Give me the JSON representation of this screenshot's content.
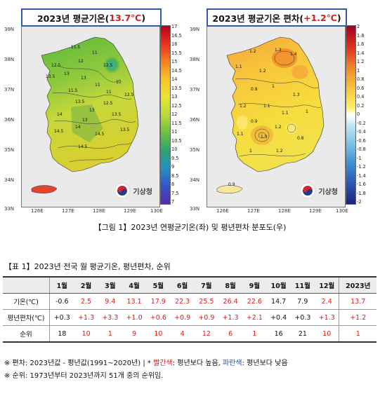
{
  "maps": [
    {
      "title_prefix": "2023년 평균기온(",
      "title_value": "13.7℃",
      "title_suffix": ")",
      "colorbar_ticks": [
        "17",
        "16.5",
        "16",
        "15.5",
        "15",
        "14.5",
        "14",
        "13.5",
        "13",
        "12.5",
        "12",
        "11.5",
        "11",
        "10.5",
        "10",
        "9.5",
        "9",
        "8.5",
        "8",
        "7.5",
        "7"
      ],
      "contour_labels": [
        "11.5",
        "11",
        "12.5",
        "12",
        "13.5",
        "13",
        "13",
        "12.5",
        "11",
        "10",
        "11",
        "12.5",
        "13.5",
        "13",
        "14",
        "13.5",
        "14.5",
        "14",
        "14.5",
        "13.5",
        "13",
        "12.5",
        "11.5",
        "14.5"
      ],
      "logo_text": "기상청"
    },
    {
      "title_prefix": "2023년 평균기온 편차(",
      "title_value": "+1.2℃",
      "title_suffix": ")",
      "colorbar_ticks": [
        "2",
        "1.8",
        "1.6",
        "1.4",
        "1.2",
        "1",
        "0.8",
        "0.6",
        "0.4",
        "0.2",
        "0",
        "-0.2",
        "-0.4",
        "-0.6",
        "-0.8",
        "-1",
        "-1.2",
        "-1.4",
        "-1.6",
        "-1.8",
        "-2"
      ],
      "contour_labels": [
        "1.2",
        "1.3",
        "1.4",
        "1.1",
        "1.2",
        "0.9",
        "1",
        "1.3",
        "1.2",
        "1.1",
        "1.1",
        "1",
        "0.9",
        "1.2",
        "1.1",
        "1.3",
        "0.8",
        "1",
        "1.2",
        "0.9"
      ],
      "logo_text": "기상청"
    }
  ],
  "axes": {
    "lat_labels": [
      "39N",
      "38N",
      "37N",
      "36N",
      "35N",
      "34N",
      "33N"
    ],
    "lon_labels": [
      "126E",
      "127E",
      "128E",
      "129E",
      "130E"
    ]
  },
  "figure_caption": "【그림 1】2023년 연평균기온(좌) 및 평년편차 분포도(우)",
  "table_title": "【표 1】2023년 전국 월 평균기온, 평년편차, 순위",
  "table": {
    "header": [
      "",
      "1월",
      "2월",
      "3월",
      "4월",
      "5월",
      "6월",
      "7월",
      "8월",
      "9월",
      "10월",
      "11월",
      "12월",
      "2023년"
    ],
    "rows": [
      {
        "label": "기온(℃)",
        "cells": [
          "-0.6",
          "2.5",
          "9.4",
          "13.1",
          "17.9",
          "22.3",
          "25.5",
          "26.4",
          "22.6",
          "14.7",
          "7.9",
          "2.4",
          "13.7"
        ],
        "colors": [
          "black",
          "red",
          "red",
          "red",
          "red",
          "red",
          "red",
          "red",
          "red",
          "black",
          "black",
          "red",
          "red"
        ]
      },
      {
        "label": "평년편차(℃)",
        "cells": [
          "+0.3",
          "+1.3",
          "+3.3",
          "+1.0",
          "+0.6",
          "+0.9",
          "+0.9",
          "+1.3",
          "+2.1",
          "+0.4",
          "+0.3",
          "+1.3",
          "+1.2"
        ],
        "colors": [
          "black",
          "red",
          "red",
          "red",
          "red",
          "red",
          "red",
          "red",
          "red",
          "black",
          "black",
          "red",
          "red"
        ]
      },
      {
        "label": "순위",
        "cells": [
          "18",
          "10",
          "1",
          "9",
          "10",
          "4",
          "12",
          "6",
          "1",
          "16",
          "21",
          "10",
          "1"
        ],
        "colors": [
          "black",
          "red",
          "red",
          "red",
          "red",
          "red",
          "red",
          "red",
          "red",
          "black",
          "black",
          "red",
          "red"
        ]
      }
    ]
  },
  "notes": {
    "line1_a": "※ 편차: 2023년값 - 평년값(1991~2020년) | * ",
    "line1_red": "빨간색",
    "line1_b": ": 평년보다 높음, ",
    "line1_blue": "파란색",
    "line1_c": ": 평년보다 낮음",
    "line2": "※ 순위: 1973년부터 2023년까지 51개 중의 순위임."
  },
  "colors": {
    "title_border": "#2e5ca8",
    "highlight_red": "#d21f1f",
    "highlight_blue": "#1f4fd2"
  }
}
